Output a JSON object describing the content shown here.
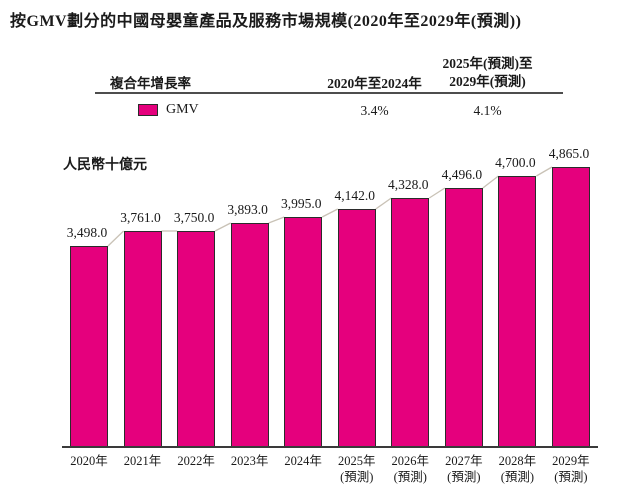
{
  "title": "按GMV劃分的中國母嬰童產品及服務市場規模(2020年至2029年(預測))",
  "unit_label": "人民幣十億元",
  "cagr_table": {
    "row_header": "複合年增長率",
    "col1_header": "2020年至2024年",
    "col2_header_line1": "2025年(預測)至",
    "col2_header_line2": "2029年(預測)",
    "legend_label": "GMV",
    "col1_value": "3.4%",
    "col2_value": "4.1%"
  },
  "colors": {
    "bar_fill": "#e5007d",
    "bar_border": "#2b2b2b",
    "connector_line": "#c9c2b6",
    "rule": "#4d4d4d",
    "text": "#1a1a1a"
  },
  "chart_data": {
    "type": "bar",
    "title": "按GMV劃分的中國母嬰童產品及服務市場規模(2020年至2029年(預測))",
    "ylabel": "人民幣十億元",
    "xlabel": "",
    "series_name": "GMV",
    "categories": [
      "2020年",
      "2021年",
      "2022年",
      "2023年",
      "2024年",
      "2025年(預測)",
      "2026年(預測)",
      "2027年(預測)",
      "2028年(預測)",
      "2029年(預測)"
    ],
    "values": [
      3498.0,
      3761.0,
      3750.0,
      3893.0,
      3995.0,
      4142.0,
      4328.0,
      4496.0,
      4700.0,
      4865.0
    ],
    "value_labels": [
      "3,498.0",
      "3,761.0",
      "3,750.0",
      "3,893.0",
      "3,995.0",
      "4,142.0",
      "4,328.0",
      "4,496.0",
      "4,700.0",
      "4,865.0"
    ],
    "cagr": [
      {
        "period": "2020年至2024年",
        "value": "3.4%"
      },
      {
        "period": "2025年(預測)至2029年(預測)",
        "value": "4.1%"
      }
    ],
    "ylim": [
      0,
      4865
    ],
    "grid": false,
    "legend_position": "table-top",
    "connector_line_between_bar_tops": true
  }
}
